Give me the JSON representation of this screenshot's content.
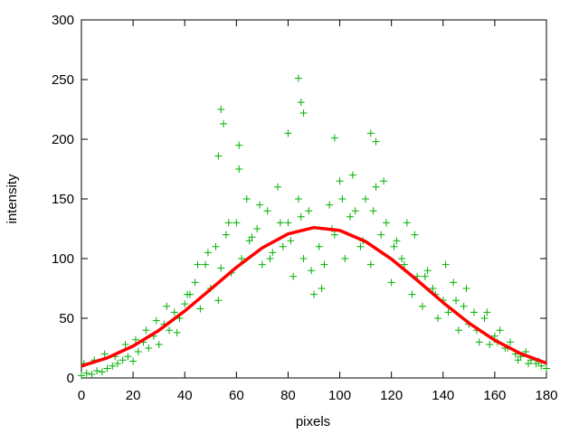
{
  "chart_data": {
    "type": "scatter",
    "xlabel": "pixels",
    "ylabel": "intensity",
    "xlim": [
      0,
      180
    ],
    "ylim": [
      0,
      300
    ],
    "xticks": [
      0,
      20,
      40,
      60,
      80,
      100,
      120,
      140,
      160,
      180
    ],
    "yticks": [
      0,
      50,
      100,
      150,
      200,
      250,
      300
    ],
    "series": [
      {
        "type": "scatter",
        "color": "#00b000",
        "x": [
          0,
          2,
          4,
          6,
          8,
          10,
          12,
          14,
          16,
          18,
          20,
          22,
          24,
          26,
          28,
          30,
          32,
          34,
          36,
          38,
          40,
          42,
          44,
          46,
          48,
          50,
          52,
          54,
          56,
          58,
          60,
          62,
          64,
          66,
          68,
          70,
          72,
          74,
          76,
          78,
          80,
          82,
          84,
          86,
          88,
          90,
          92,
          94,
          96,
          98,
          100,
          102,
          104,
          106,
          108,
          110,
          112,
          114,
          116,
          118,
          120,
          122,
          124,
          126,
          128,
          130,
          132,
          134,
          136,
          138,
          140,
          142,
          144,
          146,
          148,
          150,
          152,
          154,
          156,
          158,
          160,
          162,
          164,
          166,
          168,
          170,
          172,
          174,
          176,
          178,
          180,
          1,
          5,
          9,
          13,
          17,
          21,
          25,
          29,
          33,
          37,
          41,
          45,
          49,
          53,
          57,
          61,
          65,
          69,
          73,
          77,
          81,
          85,
          89,
          93,
          97,
          101,
          105,
          109,
          113,
          117,
          121,
          125,
          129,
          133,
          137,
          141,
          145,
          149,
          153,
          157,
          161,
          165,
          169,
          173,
          177,
          53,
          54,
          55,
          61,
          80,
          84,
          85,
          86,
          98,
          112,
          114
        ],
        "values": [
          2,
          4,
          3,
          6,
          5,
          8,
          10,
          12,
          15,
          18,
          14,
          22,
          30,
          25,
          35,
          28,
          45,
          40,
          55,
          50,
          62,
          70,
          80,
          58,
          95,
          75,
          110,
          92,
          120,
          88,
          130,
          100,
          150,
          118,
          125,
          95,
          140,
          105,
          160,
          110,
          130,
          85,
          150,
          100,
          140,
          70,
          110,
          95,
          145,
          120,
          165,
          100,
          135,
          140,
          110,
          150,
          95,
          160,
          120,
          130,
          80,
          115,
          100,
          130,
          70,
          85,
          60,
          90,
          75,
          50,
          65,
          55,
          80,
          40,
          60,
          45,
          55,
          30,
          50,
          28,
          35,
          40,
          25,
          30,
          20,
          18,
          22,
          15,
          12,
          10,
          8,
          12,
          15,
          20,
          18,
          28,
          32,
          40,
          48,
          60,
          38,
          70,
          95,
          105,
          65,
          130,
          175,
          115,
          145,
          100,
          130,
          115,
          135,
          90,
          75,
          125,
          150,
          170,
          115,
          140,
          165,
          110,
          95,
          120,
          85,
          70,
          95,
          65,
          75,
          40,
          55,
          30,
          25,
          15,
          12,
          14,
          186,
          225,
          213,
          195,
          205,
          251,
          231,
          222,
          201,
          205,
          198
        ]
      },
      {
        "type": "line",
        "color": "#ff0000",
        "x": [
          0,
          10,
          20,
          30,
          40,
          50,
          60,
          70,
          80,
          90,
          100,
          110,
          120,
          130,
          140,
          150,
          160,
          170,
          180
        ],
        "values": [
          10.0,
          16.8,
          26.7,
          39.9,
          56.1,
          74.3,
          92.7,
          109.0,
          120.7,
          126.0,
          123.6,
          114.3,
          99.6,
          81.8,
          63.2,
          46.0,
          31.6,
          20.4,
          12.4
        ]
      }
    ]
  }
}
